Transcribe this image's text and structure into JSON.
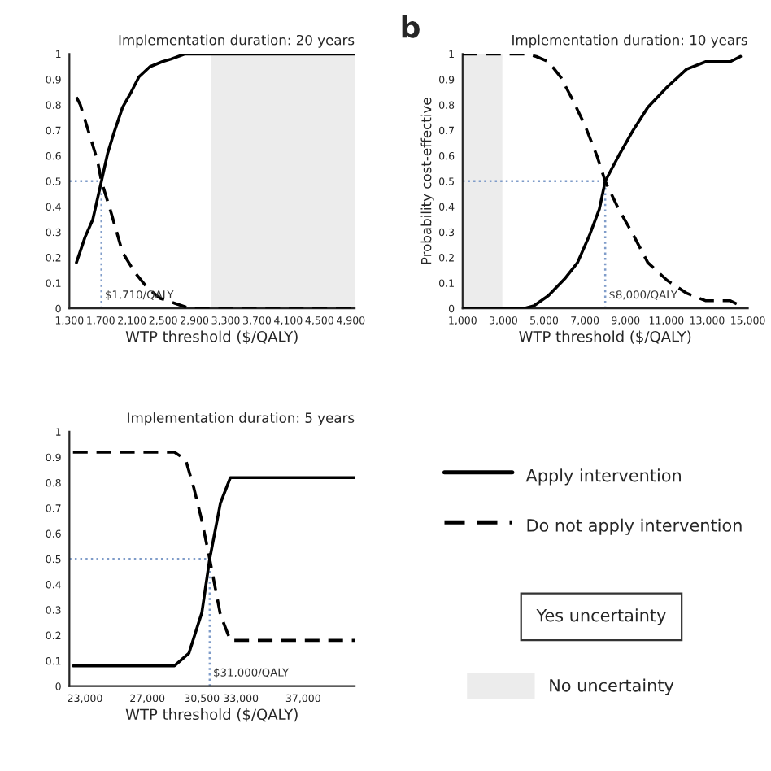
{
  "chart_data": [
    {
      "type": "line",
      "title": "Implementation duration: 20 years",
      "xlabel": "WTP threshold ($/QALY)",
      "xlim": [
        1300,
        4950
      ],
      "xticks": [
        {
          "value": 1300,
          "label": "1,300"
        },
        {
          "value": 1700,
          "label": "1,700"
        },
        {
          "value": 2100,
          "label": "2,100"
        },
        {
          "value": 2500,
          "label": "2,500"
        },
        {
          "value": 2900,
          "label": "2,900"
        },
        {
          "value": 3300,
          "label": "3,300"
        },
        {
          "value": 3700,
          "label": "3,700"
        },
        {
          "value": 4100,
          "label": "4,100"
        },
        {
          "value": 4500,
          "label": "4,500"
        },
        {
          "value": 4900,
          "label": "4,900"
        }
      ],
      "ylim": [
        0,
        1
      ],
      "yticks": [
        0,
        0.1,
        0.2,
        0.3,
        0.4,
        0.5,
        0.6,
        0.7,
        0.8,
        0.9,
        1
      ],
      "series": [
        {
          "name": "Apply intervention",
          "color": "#000000",
          "line_style": "solid",
          "x": [
            1390,
            1500,
            1600,
            1710,
            1790,
            1870,
            1980,
            2090,
            2190,
            2330,
            2490,
            2600,
            2780,
            3050,
            4950
          ],
          "values": [
            0.18,
            0.28,
            0.35,
            0.5,
            0.61,
            0.69,
            0.79,
            0.85,
            0.91,
            0.95,
            0.97,
            0.98,
            1.0,
            1.0,
            1.0
          ]
        },
        {
          "name": "Do not apply intervention",
          "color": "#000000",
          "line_style": "dashed",
          "x": [
            1390,
            1440,
            1550,
            1660,
            1710,
            1840,
            1980,
            2140,
            2300,
            2460,
            2650,
            2840,
            4950
          ],
          "values": [
            0.83,
            0.8,
            0.69,
            0.58,
            0.5,
            0.37,
            0.22,
            0.14,
            0.08,
            0.04,
            0.02,
            0.0,
            0.0
          ]
        }
      ],
      "bands": [
        {
          "axis": "x",
          "from": 3110,
          "to": 4950,
          "label": "No uncertainty",
          "color": "#ececec"
        }
      ],
      "ref_lines": [
        {
          "axis": "x",
          "value": 1710,
          "label": "$1,710/QALY",
          "color": "#7f9cc9",
          "line_style": "dotted"
        },
        {
          "axis": "y",
          "value": 0.5,
          "color": "#7f9cc9",
          "line_style": "dotted"
        }
      ],
      "annotations": [
        "Yes uncertainty"
      ],
      "legend": "right",
      "grid": false
    },
    {
      "type": "line",
      "title": "Implementation duration: 10 years",
      "xlabel": "WTP threshold ($/QALY)",
      "ylabel": "Probability cost-effective",
      "xlim": [
        1000,
        15000
      ],
      "xticks": [
        {
          "value": 1000,
          "label": "1,000"
        },
        {
          "value": 3000,
          "label": "3,000"
        },
        {
          "value": 5000,
          "label": "5,000"
        },
        {
          "value": 7000,
          "label": "7,000"
        },
        {
          "value": 9000,
          "label": "9,000"
        },
        {
          "value": 11000,
          "label": "11,000"
        },
        {
          "value": 13000,
          "label": "13,000"
        },
        {
          "value": 15000,
          "label": "15,000"
        }
      ],
      "ylim": [
        0,
        1
      ],
      "yticks": [
        0,
        0.1,
        0.2,
        0.3,
        0.4,
        0.5,
        0.6,
        0.7,
        0.8,
        0.9,
        1
      ],
      "series": [
        {
          "color": "#000000",
          "line_style": "solid",
          "x": [
            1000,
            4020,
            4500,
            5210,
            6050,
            6640,
            7240,
            7710,
            8000,
            8660,
            9370,
            10090,
            11040,
            11990,
            12940,
            14140,
            14640
          ],
          "values": [
            0,
            0,
            0.01,
            0.05,
            0.12,
            0.18,
            0.29,
            0.39,
            0.5,
            0.6,
            0.7,
            0.79,
            0.87,
            0.94,
            0.97,
            0.97,
            0.99
          ]
        },
        {
          "color": "#000000",
          "line_style": "dashed",
          "x": [
            1000,
            4140,
            4620,
            5210,
            5810,
            6400,
            7000,
            7590,
            8000,
            8660,
            9370,
            10090,
            11040,
            11990,
            12940,
            14140,
            14640
          ],
          "values": [
            1,
            1,
            0.99,
            0.97,
            0.91,
            0.82,
            0.72,
            0.6,
            0.5,
            0.39,
            0.29,
            0.18,
            0.11,
            0.06,
            0.03,
            0.03,
            0.01
          ]
        }
      ],
      "bands": [
        {
          "axis": "x",
          "from": 1000,
          "to": 2950,
          "color": "#ececec"
        }
      ],
      "ref_lines": [
        {
          "axis": "x",
          "value": 8000,
          "label": "$8,000/QALY",
          "color": "#7f9cc9",
          "line_style": "dotted"
        },
        {
          "axis": "y",
          "value": 0.5,
          "color": "#7f9cc9",
          "line_style": "dotted"
        }
      ],
      "annotations": [
        "b"
      ],
      "grid": false
    },
    {
      "type": "line",
      "title": "Implementation duration: 5 years",
      "xlabel": "WTP threshold ($/QALY)",
      "xlim": [
        22000,
        40300
      ],
      "xticks": [
        {
          "value": 23000,
          "label": "23,000"
        },
        {
          "value": 27000,
          "label": "27,000"
        },
        {
          "value": 30500,
          "label": "30,500"
        },
        {
          "value": 33000,
          "label": "33,000"
        },
        {
          "value": 37000,
          "label": "37,000"
        }
      ],
      "ylim": [
        0,
        1
      ],
      "yticks": [
        0,
        0.1,
        0.2,
        0.3,
        0.4,
        0.5,
        0.6,
        0.7,
        0.8,
        0.9,
        1
      ],
      "series": [
        {
          "color": "#000000",
          "line_style": "solid",
          "x": [
            22230,
            28740,
            29670,
            30500,
            31000,
            31690,
            32330,
            40300
          ],
          "values": [
            0.08,
            0.08,
            0.13,
            0.29,
            0.5,
            0.72,
            0.82,
            0.82
          ]
        },
        {
          "color": "#000000",
          "line_style": "dashed",
          "x": [
            22230,
            28740,
            29460,
            29980,
            30500,
            31000,
            31690,
            32330,
            40300
          ],
          "values": [
            0.92,
            0.92,
            0.89,
            0.78,
            0.65,
            0.5,
            0.28,
            0.18,
            0.18
          ]
        }
      ],
      "ref_lines": [
        {
          "axis": "x",
          "value": 31000,
          "label": "$31,000/QALY",
          "color": "#7f9cc9",
          "line_style": "dotted"
        },
        {
          "axis": "y",
          "value": 0.5,
          "color": "#7f9cc9",
          "line_style": "dotted"
        }
      ],
      "grid": false
    }
  ]
}
